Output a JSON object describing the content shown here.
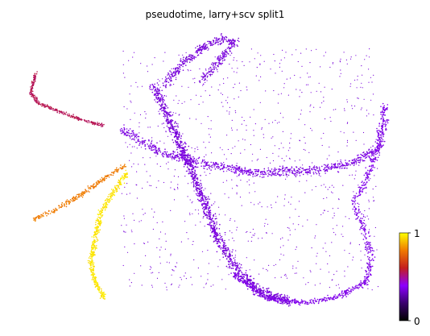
{
  "chart_data": {
    "type": "scatter",
    "title": "pseudotime, larry+scv split1",
    "xlabel": "",
    "ylabel": "",
    "axes_visible": false,
    "grid": false,
    "point_style": "tiny dots, thousands of cells",
    "colormap": {
      "name": "gnuplot",
      "label": "",
      "vmin": 0,
      "vmax": 1,
      "ticks": [
        "0",
        "1"
      ],
      "stops": [
        "#000000",
        "#3a006d",
        "#8c00ff",
        "#c41e1e",
        "#f07a00",
        "#ffff00"
      ]
    },
    "regions": [
      {
        "name": "main-left-band",
        "value": 0.35
      },
      {
        "name": "top-ridge",
        "value": 0.35
      },
      {
        "name": "horizontal-band",
        "value": 0.36
      },
      {
        "name": "right-arc",
        "value": 0.37
      },
      {
        "name": "bottom-arc",
        "value": 0.37
      },
      {
        "name": "top-left-branch",
        "value": 0.55
      },
      {
        "name": "middle-left-branch",
        "value": 0.8
      },
      {
        "name": "bottom-left-branch",
        "value": 0.96
      }
    ]
  }
}
